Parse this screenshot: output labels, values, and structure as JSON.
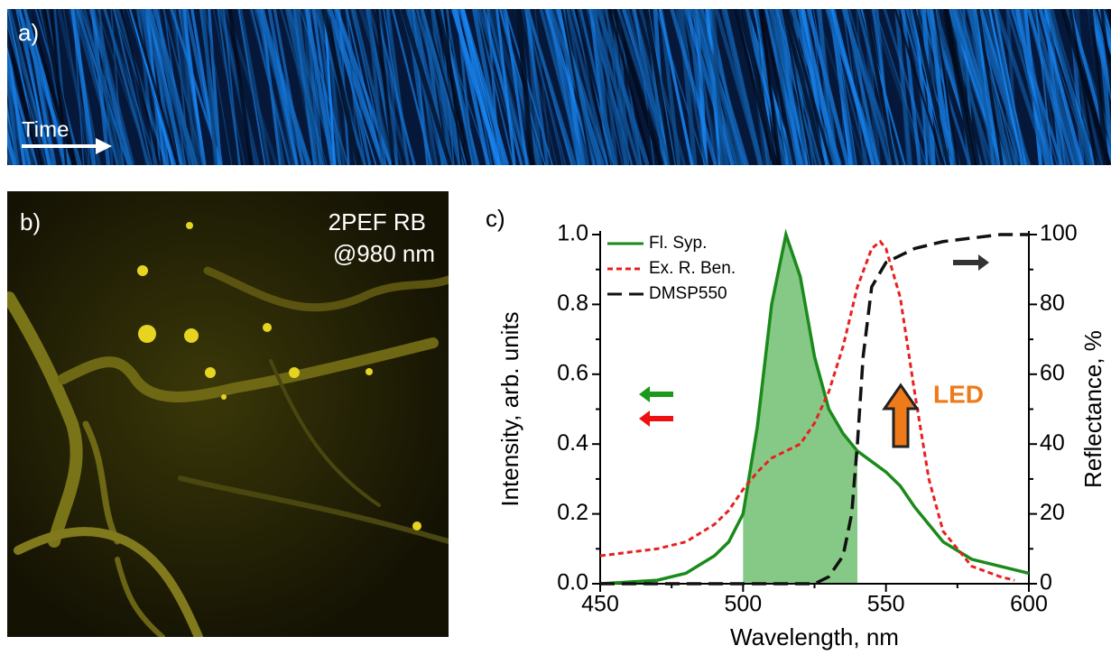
{
  "panels": {
    "a": {
      "label": "a)",
      "annotation": "Time"
    },
    "b": {
      "label": "b)",
      "annotation_line1": "2PEF RB",
      "annotation_line2": "@980 nm"
    }
  },
  "chart_data": {
    "type": "line",
    "panel_label": "c)",
    "x_label": "Wavelength, nm",
    "y_label": "Intensity, arb. units",
    "y2_label": "Reflectance, %",
    "annotation": "LED",
    "xlim": [
      450,
      600
    ],
    "xticks": [
      450,
      500,
      550,
      600
    ],
    "xminorticks": [
      475,
      525,
      575
    ],
    "ylim": [
      0,
      1
    ],
    "yticks": [
      {
        "value": 0,
        "label": "0.0"
      },
      0.2,
      0.4,
      0.6,
      0.8,
      {
        "value": 1,
        "label": "1.0"
      }
    ],
    "yminorticks": [
      0.1,
      0.3,
      0.5,
      0.7,
      0.9
    ],
    "y2lim": [
      0,
      100
    ],
    "y2ticks": [
      0,
      20,
      40,
      60,
      80,
      100
    ],
    "y2minorticks": [
      10,
      30,
      50,
      70,
      90
    ],
    "legend": "upper left",
    "shaded_range": {
      "x": [
        500,
        540
      ],
      "color": "#86c986"
    },
    "series": [
      {
        "name": "Fl. Syp.",
        "color": "#1a8a1a",
        "dash": "solid",
        "x": [
          450,
          460,
          470,
          480,
          490,
          495,
          500,
          505,
          510,
          515,
          520,
          525,
          530,
          535,
          540,
          545,
          550,
          555,
          560,
          565,
          570,
          580,
          590,
          600
        ],
        "values": [
          0,
          0.005,
          0.01,
          0.03,
          0.08,
          0.12,
          0.2,
          0.45,
          0.8,
          1.0,
          0.88,
          0.65,
          0.5,
          0.43,
          0.38,
          0.35,
          0.32,
          0.28,
          0.22,
          0.17,
          0.12,
          0.07,
          0.05,
          0.03
        ]
      },
      {
        "name": "Ex. R. Ben.",
        "color": "#e82020",
        "dash": "dotted",
        "x": [
          450,
          460,
          470,
          480,
          490,
          495,
          500,
          505,
          510,
          515,
          520,
          525,
          530,
          535,
          540,
          545,
          548,
          550,
          555,
          560,
          565,
          570,
          580,
          590,
          595
        ],
        "values": [
          0.08,
          0.09,
          0.1,
          0.12,
          0.17,
          0.21,
          0.27,
          0.32,
          0.36,
          0.38,
          0.4,
          0.46,
          0.55,
          0.68,
          0.85,
          0.96,
          0.98,
          0.96,
          0.82,
          0.55,
          0.3,
          0.15,
          0.05,
          0.02,
          0.01
        ]
      },
      {
        "name": "DMSP550",
        "color": "#111111",
        "dash": "dashed",
        "axis": "y2",
        "x": [
          450,
          500,
          520,
          525,
          530,
          535,
          538,
          540,
          542,
          545,
          550,
          555,
          560,
          570,
          580,
          590,
          600
        ],
        "values": [
          0,
          0,
          0,
          0,
          2,
          8,
          20,
          40,
          65,
          85,
          92,
          94,
          96,
          98,
          99,
          100,
          100
        ]
      }
    ]
  }
}
